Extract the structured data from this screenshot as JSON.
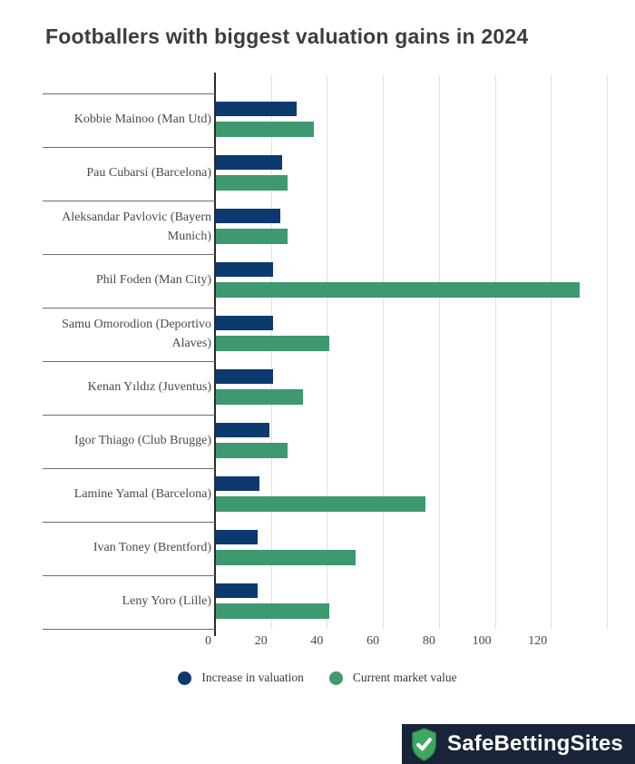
{
  "chart_data": {
    "type": "bar",
    "orientation": "horizontal",
    "title": "Footballers with biggest valuation gains in 2024",
    "categories": [
      "Kobbie Mainoo (Man Utd)",
      "Pau Cubarsí (Barcelona)",
      "Aleksandar Pavlovic (Bayern\nMunich)",
      "Phil Foden (Man City)",
      "Samu Omorodion (Deportivo\nAlaves)",
      "Kenan Yıldız (Juventus)",
      "Igor Thiago (Club Brugge)",
      "Lamine Yamal (Barcelona)",
      "Ivan Toney (Brentford)",
      "Leny Yoro (Lille)"
    ],
    "series": [
      {
        "name": "Increase in valuation",
        "color": "#0d3a6e",
        "values": [
          29,
          23.5,
          23,
          20.5,
          20.5,
          20.5,
          19,
          15.5,
          15,
          15
        ]
      },
      {
        "name": "Current market value",
        "color": "#3e9970",
        "values": [
          35,
          25.5,
          25.5,
          130,
          40.5,
          31,
          25.5,
          75,
          50,
          40.5
        ]
      }
    ],
    "xlim": [
      0,
      140
    ],
    "xticks": [
      0,
      20,
      40,
      60,
      80,
      100,
      120
    ],
    "gridlines": [
      20,
      40,
      60,
      80,
      100,
      120,
      140
    ],
    "grid": true,
    "legend_position": "bottom"
  },
  "legend": {
    "items": [
      {
        "label": "Increase in valuation",
        "color": "#0d3a6e"
      },
      {
        "label": "Current market value",
        "color": "#3e9970"
      }
    ]
  },
  "branding": {
    "logo_text": "SafeBettingSites",
    "logo_background": "#1a2438",
    "shield_color": "#3fa860",
    "shield_border": "#2d8c4e"
  }
}
